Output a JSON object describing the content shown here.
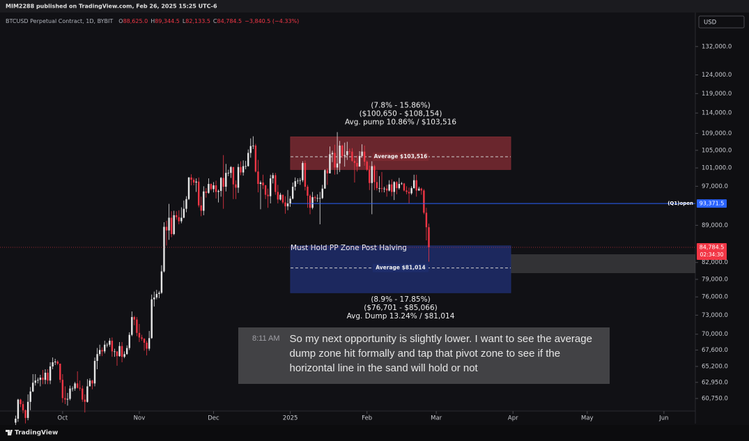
{
  "header": {
    "publisher": "MIM2288 published on TradingView.com, Feb 26, 2025 15:25 UTC-6",
    "symbol": "BTCUSD Perpetual Contract, 1D, BYBIT",
    "ohlc": [
      {
        "key": "O",
        "value": "88,625.0"
      },
      {
        "key": "H",
        "value": "89,344.5"
      },
      {
        "key": "L",
        "value": "82,133.5"
      },
      {
        "key": "C",
        "value": "84,784.5"
      }
    ],
    "change": "−3,840.5 (−4.33%)",
    "currency": "USD"
  },
  "chart_data": {
    "type": "candlestick",
    "log_scale": true,
    "grid": false,
    "up_color": "#e6e6e6",
    "down_color": "#f23645",
    "xlim": [
      -6.3,
      274.7
    ],
    "xticks": [
      {
        "value": 19,
        "label": "Oct"
      },
      {
        "value": 50,
        "label": "Nov"
      },
      {
        "value": 80,
        "label": "Dec"
      },
      {
        "value": 111,
        "label": "2025"
      },
      {
        "value": 142,
        "label": "Feb"
      },
      {
        "value": 170,
        "label": "Mar"
      },
      {
        "value": 201,
        "label": "Apr"
      },
      {
        "value": 231,
        "label": "May"
      },
      {
        "value": 262,
        "label": "Jun"
      }
    ],
    "ylim": [
      59091,
      141840
    ],
    "yticks": [
      {
        "value": 132000,
        "label": "132,000.0"
      },
      {
        "value": 124000,
        "label": "124,000.0"
      },
      {
        "value": 119000,
        "label": "119,000.0"
      },
      {
        "value": 114000,
        "label": "114,000.0"
      },
      {
        "value": 109000,
        "label": "109,000.0"
      },
      {
        "value": 105000,
        "label": "105,000.0"
      },
      {
        "value": 101000,
        "label": "101,000.0"
      },
      {
        "value": 97000,
        "label": "97,000.0"
      },
      {
        "value": 89000,
        "label": "89,000.0"
      },
      {
        "value": 82000,
        "label": "82,000.0"
      },
      {
        "value": 79000,
        "label": "79,000.0"
      },
      {
        "value": 76000,
        "label": "76,000.0"
      },
      {
        "value": 73000,
        "label": "73,000.0"
      },
      {
        "value": 70000,
        "label": "70,000.0"
      },
      {
        "value": 67600,
        "label": "67,600.0"
      },
      {
        "value": 65200,
        "label": "65,200.0"
      },
      {
        "value": 62950,
        "label": "62,950.0"
      },
      {
        "value": 60750,
        "label": "60,750.0"
      }
    ],
    "open": [
      57600,
      58100,
      60600,
      60000,
      59200,
      58200,
      60300,
      61700,
      62900,
      63200,
      63300,
      63600,
      63300,
      64300,
      63200,
      65200,
      65800,
      65900,
      65600,
      63300,
      60800,
      60600,
      60700,
      62100,
      62100,
      62800,
      62200,
      62100,
      60600,
      60300,
      62400,
      63200,
      62800,
      66000,
      67000,
      67600,
      67400,
      68400,
      68400,
      69000,
      67400,
      67400,
      66700,
      68200,
      66600,
      67000,
      67900,
      69900,
      72700,
      72300,
      70200,
      69500,
      69300,
      68700,
      67800,
      69400,
      75600,
      75900,
      76500,
      76700,
      80400,
      88700,
      88000,
      90500,
      87300,
      91000,
      90600,
      89800,
      90500,
      92300,
      94300,
      98900,
      98400,
      97800,
      98000,
      93000,
      91900,
      95900,
      95600,
      97500,
      96400,
      97200,
      95800,
      96000,
      98800,
      96900,
      99900,
      99900,
      101200,
      97400,
      96700,
      101200,
      100000,
      101400,
      101400,
      104400,
      106000,
      106100,
      100200,
      97500,
      97800,
      97200,
      95200,
      94900,
      98700,
      99400,
      95800,
      94200,
      95200,
      93600,
      92800,
      93400,
      94400,
      96900,
      98100,
      98200,
      98300,
      102100,
      96900,
      95000,
      92500,
      94700,
      94500,
      94500,
      94500,
      96500,
      100500,
      99800,
      104100,
      104400,
      101100,
      102000,
      106100,
      103700,
      103900,
      104800,
      104700,
      102600,
      102100,
      101300,
      103700,
      104700,
      102400,
      100600,
      97700,
      101400,
      97900,
      96600,
      96600,
      96500,
      96500,
      96100,
      97400,
      95800,
      97900,
      96600,
      97500,
      97600,
      96100,
      95800,
      95500,
      96600,
      98300,
      96100,
      96500,
      96100,
      91500,
      88625
    ],
    "high": [
      58500,
      60700,
      60700,
      60400,
      59300,
      61300,
      62300,
      64100,
      64100,
      63600,
      64000,
      64700,
      64800,
      64800,
      65800,
      66500,
      66300,
      66100,
      65600,
      64100,
      62400,
      61500,
      62500,
      62400,
      63000,
      64500,
      63200,
      62500,
      61300,
      63400,
      63500,
      63300,
      66500,
      67900,
      68400,
      68000,
      69000,
      68700,
      69400,
      69500,
      67800,
      67400,
      68800,
      68800,
      67400,
      68300,
      70300,
      73600,
      72900,
      72700,
      71600,
      69900,
      69400,
      69000,
      70500,
      76400,
      76900,
      77200,
      77000,
      81500,
      89600,
      89900,
      93300,
      91800,
      91900,
      91800,
      92000,
      92600,
      94000,
      94900,
      99000,
      99600,
      98800,
      98700,
      98900,
      94800,
      97000,
      96600,
      98700,
      97600,
      97900,
      98200,
      96300,
      99000,
      103900,
      101900,
      100600,
      101400,
      101200,
      98300,
      101900,
      102500,
      102700,
      102600,
      105200,
      107800,
      108300,
      106500,
      102800,
      98200,
      99500,
      97300,
      96500,
      99500,
      99900,
      99900,
      97300,
      95600,
      95200,
      94900,
      96200,
      94900,
      97800,
      98900,
      98700,
      98800,
      102500,
      102700,
      97300,
      95300,
      95800,
      95000,
      95300,
      95800,
      97300,
      100700,
      100900,
      105900,
      104900,
      106300,
      109300,
      107200,
      106300,
      106800,
      107000,
      105400,
      105500,
      103200,
      103800,
      104800,
      106400,
      106100,
      102700,
      101500,
      102500,
      101700,
      100400,
      99200,
      100100,
      96900,
      97300,
      98300,
      98500,
      98100,
      98100,
      98800,
      97900,
      97700,
      97000,
      96700,
      97000,
      99500,
      99500,
      96900,
      96700,
      96400,
      92500,
      89344.5
    ],
    "low": [
      57300,
      57700,
      59600,
      58800,
      57500,
      57900,
      59200,
      61600,
      62500,
      62800,
      62400,
      62700,
      62700,
      62700,
      62700,
      64800,
      65400,
      65400,
      62900,
      60200,
      60000,
      59800,
      60500,
      61700,
      61800,
      62100,
      61800,
      60300,
      58900,
      60200,
      62400,
      62000,
      62400,
      64800,
      66700,
      66700,
      67100,
      68000,
      68100,
      66600,
      66600,
      65300,
      66600,
      65800,
      66400,
      66900,
      67600,
      69700,
      71400,
      69700,
      68800,
      69000,
      67500,
      66800,
      67500,
      69300,
      74400,
      75600,
      75800,
      76500,
      80200,
      85100,
      86200,
      86700,
      87100,
      90100,
      89200,
      89400,
      90400,
      91600,
      94100,
      97200,
      97200,
      95800,
      92600,
      90800,
      91000,
      94600,
      95400,
      96100,
      95700,
      94400,
      93600,
      94800,
      92300,
      95900,
      99200,
      98800,
      94300,
      94300,
      95600,
      99400,
      99300,
      100700,
      101300,
      103300,
      105300,
      100000,
      95700,
      92200,
      96400,
      94300,
      92500,
      93400,
      97600,
      95200,
      93400,
      94000,
      93300,
      91300,
      92000,
      92700,
      94200,
      96100,
      97500,
      97300,
      97900,
      96100,
      92500,
      91200,
      92200,
      93800,
      93700,
      89200,
      94300,
      96500,
      97300,
      99800,
      102300,
      99500,
      99600,
      100100,
      103200,
      101300,
      102800,
      104100,
      102400,
      97800,
      100200,
      101300,
      103300,
      101500,
      100300,
      96200,
      91200,
      96200,
      96100,
      95700,
      95700,
      95700,
      94800,
      95900,
      94900,
      94100,
      95300,
      96300,
      97300,
      95900,
      95300,
      93400,
      95200,
      96500,
      94800,
      96000,
      95200,
      91200,
      86100,
      82133.5
    ],
    "close": [
      58100,
      60600,
      60000,
      59200,
      58200,
      60300,
      61700,
      62900,
      63200,
      63300,
      63600,
      63300,
      64300,
      63200,
      65200,
      65800,
      65900,
      65600,
      63300,
      60800,
      60600,
      60700,
      62100,
      62100,
      62800,
      62200,
      62100,
      60600,
      60300,
      62400,
      63200,
      62800,
      66000,
      67000,
      67600,
      67400,
      68400,
      68400,
      69000,
      67400,
      67400,
      66700,
      68200,
      66600,
      67000,
      67900,
      69900,
      72700,
      72300,
      70200,
      69500,
      69300,
      68700,
      67800,
      69400,
      75600,
      75900,
      76500,
      76700,
      80400,
      88700,
      88000,
      90500,
      87300,
      91000,
      90600,
      89800,
      90500,
      92300,
      94300,
      98900,
      98400,
      97800,
      98000,
      93000,
      91900,
      95900,
      95600,
      97500,
      96400,
      97200,
      95800,
      96000,
      98800,
      96900,
      99900,
      99900,
      101200,
      97400,
      96700,
      101200,
      100000,
      101400,
      101400,
      104400,
      106000,
      106100,
      100200,
      97500,
      97800,
      97200,
      95200,
      94900,
      98700,
      99400,
      95800,
      94200,
      95200,
      93600,
      92800,
      93400,
      94400,
      96900,
      98100,
      98200,
      98300,
      102100,
      96900,
      95000,
      92500,
      94700,
      94500,
      94500,
      94500,
      96500,
      100500,
      99800,
      104100,
      104400,
      101100,
      102000,
      106100,
      103700,
      103900,
      104800,
      104700,
      102600,
      102100,
      101300,
      103700,
      104700,
      102400,
      100600,
      97700,
      101400,
      97900,
      96600,
      96600,
      96500,
      96500,
      96100,
      97400,
      95800,
      97900,
      96600,
      97500,
      97600,
      96100,
      95800,
      95500,
      96600,
      98300,
      96100,
      96500,
      96100,
      91500,
      88625,
      84784.5
    ],
    "zones": [
      {
        "color": "#7a2a31",
        "range_pct": "(7.8% - 15.86%)",
        "range": {
          "low": 100650,
          "high": 108154,
          "label": "($100,650 - $108,154)"
        },
        "summary": "Avg. pump 10.86% / $103,516",
        "average": {
          "value": 103516,
          "label": "Average $103,516"
        }
      },
      {
        "color": "#1e2d6b",
        "title": "Must Hold PP Zone Post Halving",
        "range_pct": "(8.9% - 17.85%)",
        "range": {
          "low": 76701,
          "high": 85066,
          "label": "($76,701 - $85,066)"
        },
        "summary": "Avg. Dump 13.24% / $81,014",
        "average": {
          "value": 81014,
          "label": "Average $81,014"
        }
      }
    ],
    "pivot": {
      "name": "(Q1)open",
      "value": 93371.5,
      "label": "93,371.5",
      "color": "#2962ff"
    },
    "last": {
      "value": 84784.5,
      "label": "84,784.5",
      "countdown": "02:34:30",
      "color": "#f23645"
    }
  },
  "message": {
    "time": "8:11 AM",
    "text": "So my next opportunity is slightly lower. I want to see the average dump zone hit formally and tap that pivot zone to see if the horizontal line in the sand will hold or not"
  },
  "footer": {
    "brand": "TradingView"
  }
}
